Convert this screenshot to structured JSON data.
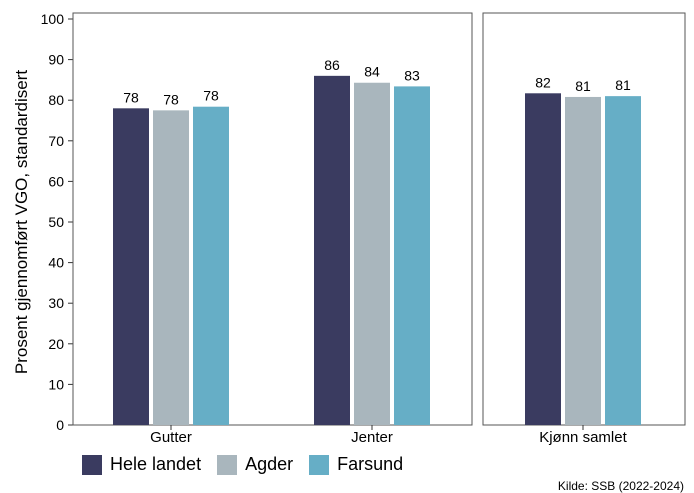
{
  "chart_data": {
    "type": "bar",
    "ylabel": "Prosent gjennomført VGO, standardisert",
    "ylim": [
      0,
      100
    ],
    "yticks": [
      0,
      10,
      20,
      30,
      40,
      50,
      60,
      70,
      80,
      90,
      100
    ],
    "grid": false,
    "legend_position": "bottom-left",
    "panels": [
      {
        "name": "left",
        "categories": [
          "Gutter",
          "Jenter"
        ],
        "series": [
          {
            "name": "Hele landet",
            "color": "#3a3b60",
            "values": [
              78,
              86
            ],
            "labels": [
              "78",
              "86"
            ]
          },
          {
            "name": "Agder",
            "color": "#a9b6bd",
            "values": [
              77.5,
              84.3
            ],
            "labels": [
              "78",
              "84"
            ]
          },
          {
            "name": "Farsund",
            "color": "#66aec6",
            "values": [
              78.4,
              83.4
            ],
            "labels": [
              "78",
              "83"
            ]
          }
        ]
      },
      {
        "name": "right",
        "categories": [
          "Kjønn samlet"
        ],
        "series": [
          {
            "name": "Hele landet",
            "color": "#3a3b60",
            "values": [
              81.7
            ],
            "labels": [
              "82"
            ]
          },
          {
            "name": "Agder",
            "color": "#a9b6bd",
            "values": [
              80.8
            ],
            "labels": [
              "81"
            ]
          },
          {
            "name": "Farsund",
            "color": "#66aec6",
            "values": [
              81
            ],
            "labels": [
              "81"
            ]
          }
        ]
      }
    ],
    "legend": [
      {
        "name": "Hele landet",
        "color": "#3a3b60"
      },
      {
        "name": "Agder",
        "color": "#a9b6bd"
      },
      {
        "name": "Farsund",
        "color": "#66aec6"
      }
    ],
    "source": "Kilde: SSB (2022-2024)"
  }
}
